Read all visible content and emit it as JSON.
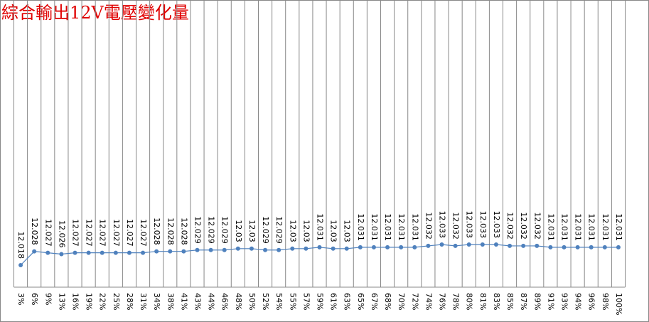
{
  "chart_data": {
    "type": "line",
    "title": "綜合輸出12V電壓變化量",
    "categories": [
      "3%",
      "6%",
      "9%",
      "13%",
      "16%",
      "19%",
      "22%",
      "25%",
      "28%",
      "31%",
      "34%",
      "38%",
      "41%",
      "43%",
      "44%",
      "46%",
      "48%",
      "50%",
      "52%",
      "54%",
      "55%",
      "57%",
      "59%",
      "61%",
      "63%",
      "65%",
      "67%",
      "68%",
      "70%",
      "72%",
      "74%",
      "76%",
      "78%",
      "80%",
      "81%",
      "83%",
      "85%",
      "87%",
      "89%",
      "91%",
      "93%",
      "94%",
      "96%",
      "98%",
      "100%"
    ],
    "values": [
      12.018,
      12.028,
      12.027,
      12.026,
      12.027,
      12.027,
      12.027,
      12.027,
      12.027,
      12.027,
      12.028,
      12.028,
      12.028,
      12.029,
      12.029,
      12.029,
      12.03,
      12.03,
      12.029,
      12.029,
      12.03,
      12.03,
      12.031,
      12.03,
      12.03,
      12.031,
      12.031,
      12.031,
      12.031,
      12.031,
      12.032,
      12.033,
      12.032,
      12.033,
      12.033,
      12.033,
      12.032,
      12.032,
      12.032,
      12.031,
      12.031,
      12.031,
      12.031,
      12.031,
      12.031
    ],
    "color": "#4f81bd",
    "grid": true
  }
}
